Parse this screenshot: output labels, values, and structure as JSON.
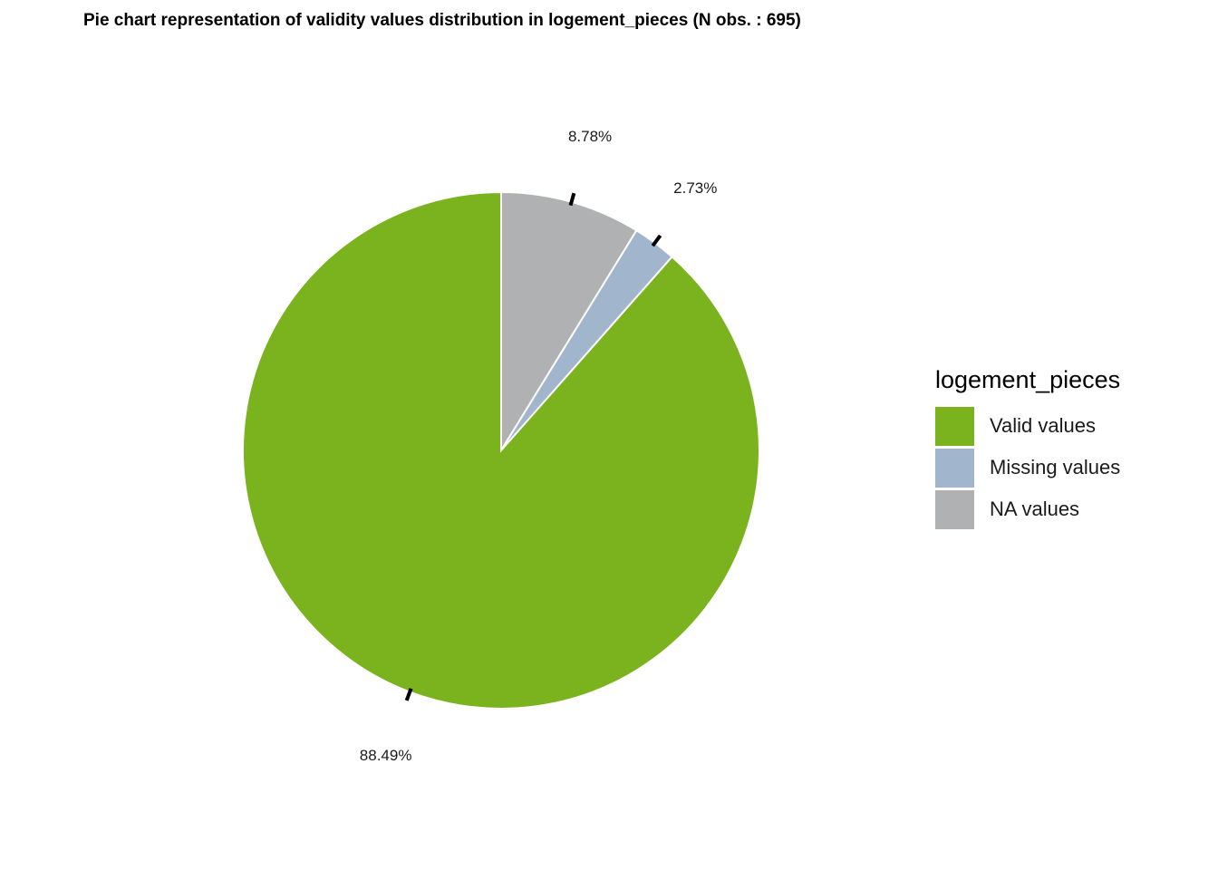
{
  "chart_data": {
    "type": "pie",
    "title": "Pie chart representation of validity values distribution in logement_pieces (N obs. : 695)",
    "legend_title": "logement_pieces",
    "legend_position": "right",
    "start_angle_deg": 0,
    "direction": "clockwise",
    "slices": [
      {
        "name": "NA values",
        "value": 8.78,
        "label": "8.78%",
        "color": "#B0B1B2"
      },
      {
        "name": "Missing values",
        "value": 2.73,
        "label": "2.73%",
        "color": "#A1B5CC"
      },
      {
        "name": "Valid values",
        "value": 88.49,
        "label": "88.49%",
        "color": "#7BB31F"
      }
    ],
    "legend_order": [
      "Valid values",
      "Missing values",
      "NA values"
    ]
  }
}
